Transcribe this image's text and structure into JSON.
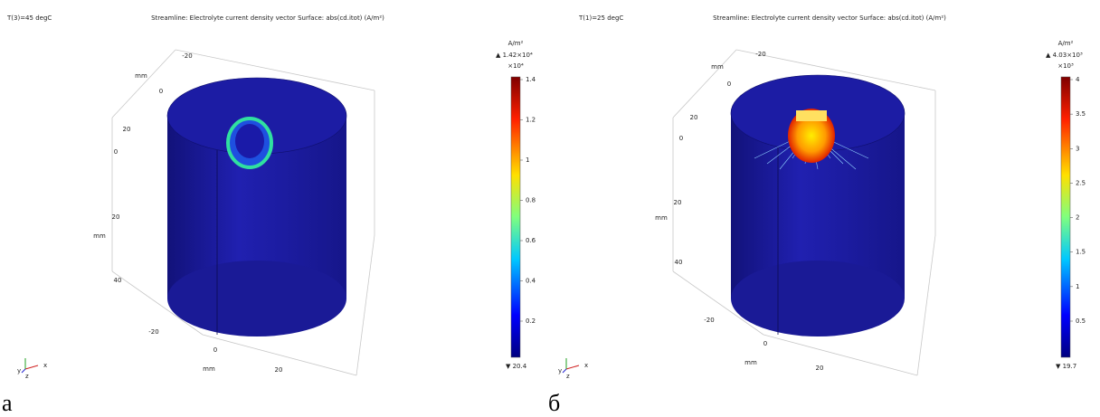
{
  "panels": [
    {
      "time_label": "T(3)=45 degC",
      "title": "Streamline: Electrolyte current density vector  Surface: abs(cd.itot) (A/m²)",
      "unit": "A/m²",
      "max_label": "▲ 1.42×10⁴",
      "scale": "×10⁴",
      "ticks": [
        1.4,
        1.2,
        1,
        0.8,
        0.6,
        0.4,
        0.2
      ],
      "min_label": "▼ 20.4",
      "axis_labels": [
        "-20",
        "0",
        "mm",
        "20",
        "0",
        "20",
        "mm",
        "40",
        "-20",
        "0",
        "mm",
        "20"
      ],
      "triad": [
        "y",
        "z",
        "x"
      ],
      "caption": "а"
    },
    {
      "time_label": "T(1)=25 degC",
      "title": "Streamline: Electrolyte current density vector  Surface: abs(cd.itot) (A/m²)",
      "unit": "A/m²",
      "max_label": "▲ 4.03×10³",
      "scale": "×10³",
      "ticks": [
        4,
        3.5,
        3,
        2.5,
        2,
        1.5,
        1,
        0.5
      ],
      "min_label": "▼ 19.7",
      "axis_labels": [
        "mm",
        "-20",
        "0",
        "20",
        "0",
        "20",
        "mm",
        "40",
        "-20",
        "0",
        "mm",
        "20"
      ],
      "triad": [
        "y",
        "z",
        "x"
      ],
      "caption": "б"
    }
  ]
}
